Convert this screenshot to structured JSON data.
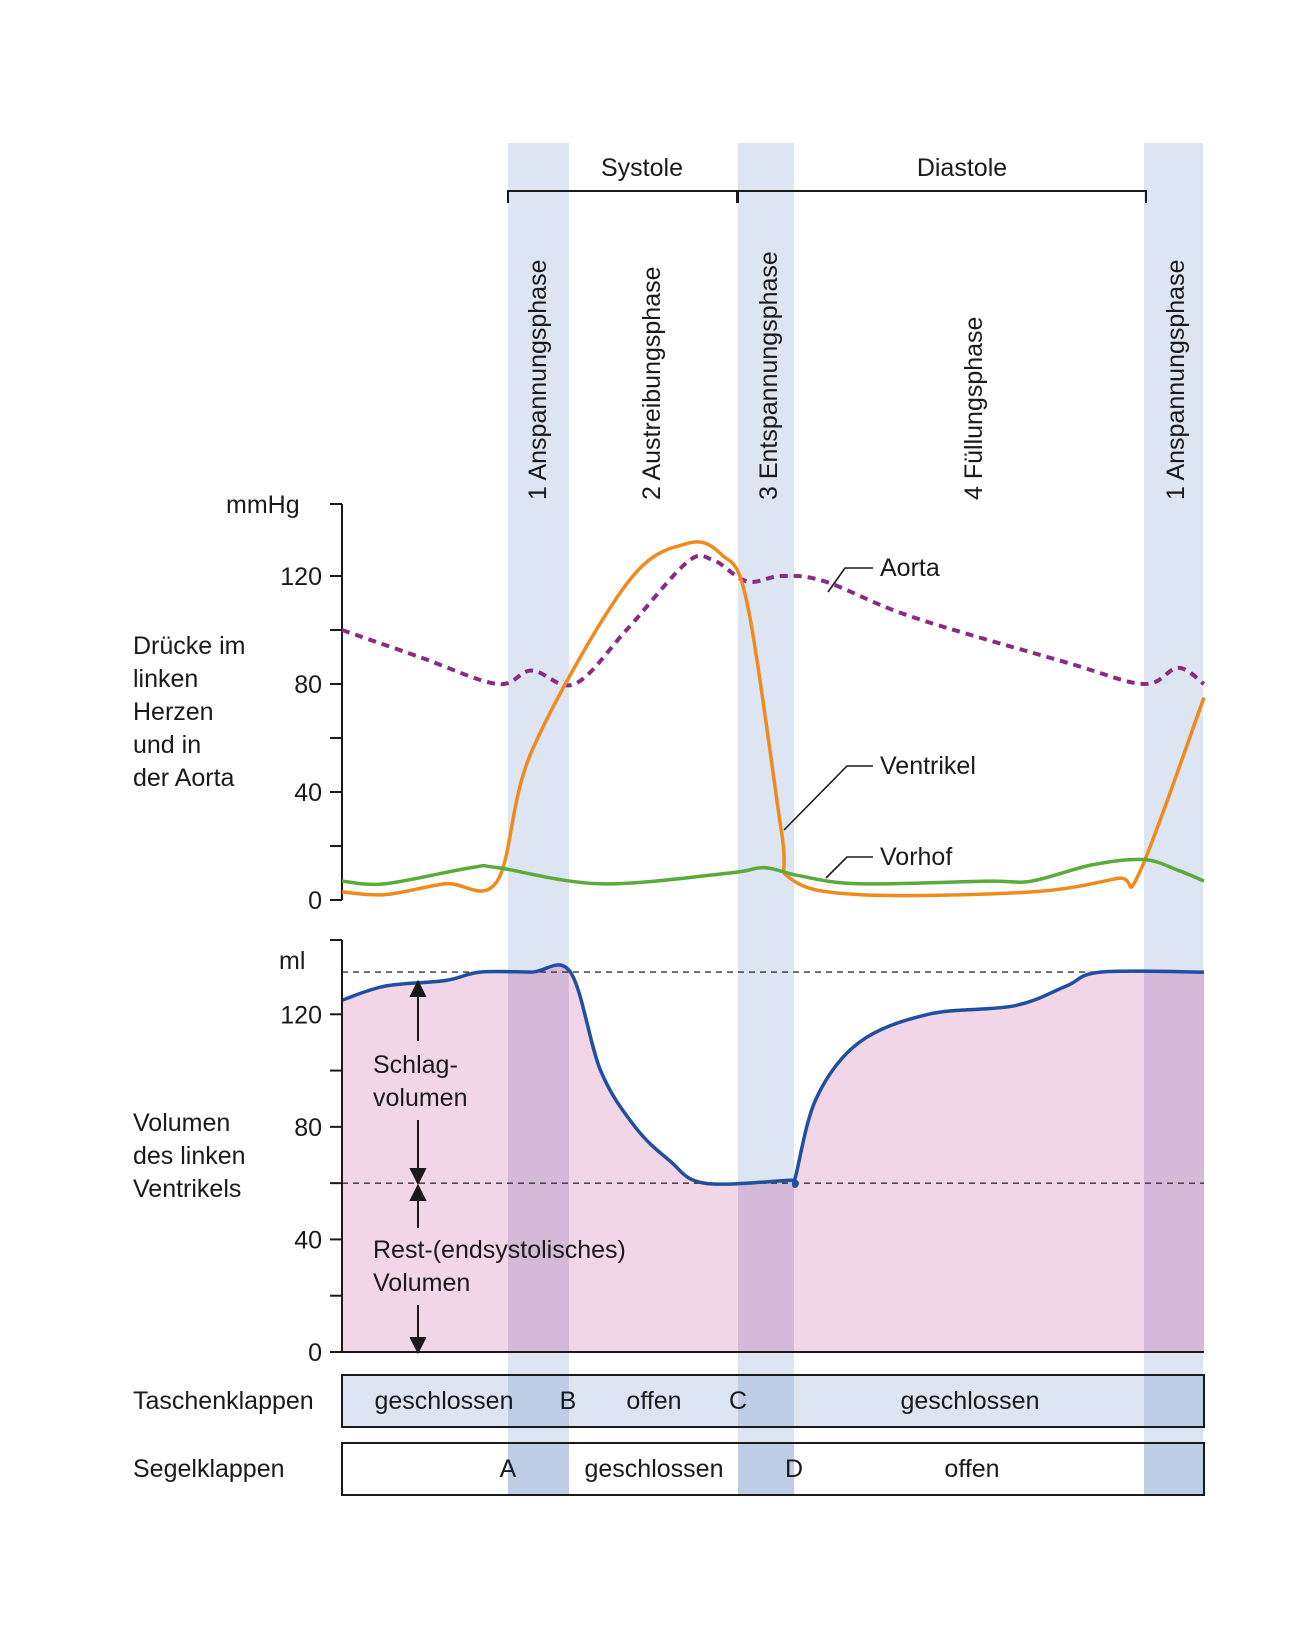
{
  "header": {
    "systole_label": "Systole",
    "diastole_label": "Diastole"
  },
  "phases": [
    {
      "label": "1 Anspannungsphase"
    },
    {
      "label": "2 Austreibungsphase"
    },
    {
      "label": "3 Entspannungsphase"
    },
    {
      "label": "4 Füllungsphase"
    },
    {
      "label": "1 Anspannungsphase"
    }
  ],
  "chart_data": [
    {
      "type": "line",
      "title": "",
      "ylabel_lines": [
        "Drücke im",
        "linken",
        "Herzen",
        "und in",
        "der Aorta"
      ],
      "unit": "mmHg",
      "ylim": [
        0,
        140
      ],
      "yticks": [
        0,
        40,
        80,
        120
      ],
      "x_unit": "time (relative, 0 to 1)",
      "series": [
        {
          "name": "Aorta",
          "style": "dotted",
          "color": "#8b2a7e",
          "points": [
            [
              0.0,
              100
            ],
            [
              0.09,
              90
            ],
            [
              0.18,
              80
            ],
            [
              0.22,
              85
            ],
            [
              0.27,
              80
            ],
            [
              0.33,
              100
            ],
            [
              0.4,
              125
            ],
            [
              0.43,
              126
            ],
            [
              0.47,
              118
            ],
            [
              0.51,
              120
            ],
            [
              0.56,
              118
            ],
            [
              0.66,
              105
            ],
            [
              0.84,
              88
            ],
            [
              0.93,
              80
            ],
            [
              0.97,
              86
            ],
            [
              1.0,
              80
            ]
          ]
        },
        {
          "name": "Ventrikel",
          "style": "solid",
          "color": "#f08a1c",
          "points": [
            [
              0.0,
              3
            ],
            [
              0.05,
              2
            ],
            [
              0.12,
              6
            ],
            [
              0.18,
              7
            ],
            [
              0.22,
              55
            ],
            [
              0.33,
              117
            ],
            [
              0.4,
              132
            ],
            [
              0.44,
              128
            ],
            [
              0.47,
              110
            ],
            [
              0.51,
              25
            ],
            [
              0.52,
              8
            ],
            [
              0.6,
              2
            ],
            [
              0.8,
              3
            ],
            [
              0.9,
              8
            ],
            [
              0.925,
              10
            ],
            [
              1.0,
              75
            ]
          ]
        },
        {
          "name": "Vorhof",
          "style": "solid",
          "color": "#5aab3a",
          "points": [
            [
              0.0,
              7
            ],
            [
              0.05,
              6
            ],
            [
              0.15,
              12
            ],
            [
              0.18,
              12
            ],
            [
              0.3,
              6
            ],
            [
              0.45,
              10
            ],
            [
              0.49,
              12
            ],
            [
              0.53,
              9
            ],
            [
              0.6,
              6
            ],
            [
              0.75,
              7
            ],
            [
              0.8,
              7
            ],
            [
              0.87,
              13
            ],
            [
              0.93,
              15
            ],
            [
              0.97,
              11
            ],
            [
              1.0,
              7
            ]
          ]
        }
      ],
      "annotations": [
        "Aorta",
        "Ventrikel",
        "Vorhof"
      ]
    },
    {
      "type": "area",
      "title": "",
      "ylabel_lines": [
        "Volumen",
        "des linken",
        "Ventrikels"
      ],
      "unit": "ml",
      "ylim": [
        0,
        140
      ],
      "yticks": [
        0,
        40,
        80,
        120
      ],
      "x_unit": "time (relative, 0 to 1)",
      "series": [
        {
          "name": "",
          "color": "#1f4fa0",
          "fill": "#f2d5e6",
          "points": [
            [
              0.0,
              125
            ],
            [
              0.05,
              130
            ],
            [
              0.12,
              132
            ],
            [
              0.16,
              135
            ],
            [
              0.22,
              135
            ],
            [
              0.265,
              135
            ],
            [
              0.3,
              100
            ],
            [
              0.34,
              80
            ],
            [
              0.38,
              68
            ],
            [
              0.42,
              60
            ],
            [
              0.52,
              61
            ],
            [
              0.525,
              61
            ],
            [
              0.55,
              90
            ],
            [
              0.6,
              110
            ],
            [
              0.68,
              120
            ],
            [
              0.78,
              123
            ],
            [
              0.84,
              130
            ],
            [
              0.88,
              135
            ],
            [
              1.0,
              135
            ]
          ]
        }
      ],
      "reference_lines": [
        135,
        60
      ],
      "annotations": {
        "stroke_volume_lines": [
          "Schlag-",
          "volumen"
        ],
        "residual_volume_lines": [
          "Rest-(endsystolisches)",
          "Volumen"
        ]
      }
    }
  ],
  "valves": {
    "taschenklappen": {
      "label": "Taschenklappen",
      "closed_1": "geschlossen",
      "marker_b": "B",
      "open": "offen",
      "marker_c": "C",
      "closed_2": "geschlossen"
    },
    "segelklappen": {
      "label": "Segelklappen",
      "marker_a": "A",
      "closed": "geschlossen",
      "marker_d": "D",
      "open": "offen"
    }
  },
  "colors": {
    "phase_band": "#dde4f2",
    "valve_band_dark": "#bdcde6",
    "volume_fill": "#f2d5e6",
    "volume_fill_band": "#d6b8d8",
    "axis": "#1a1a1a"
  }
}
